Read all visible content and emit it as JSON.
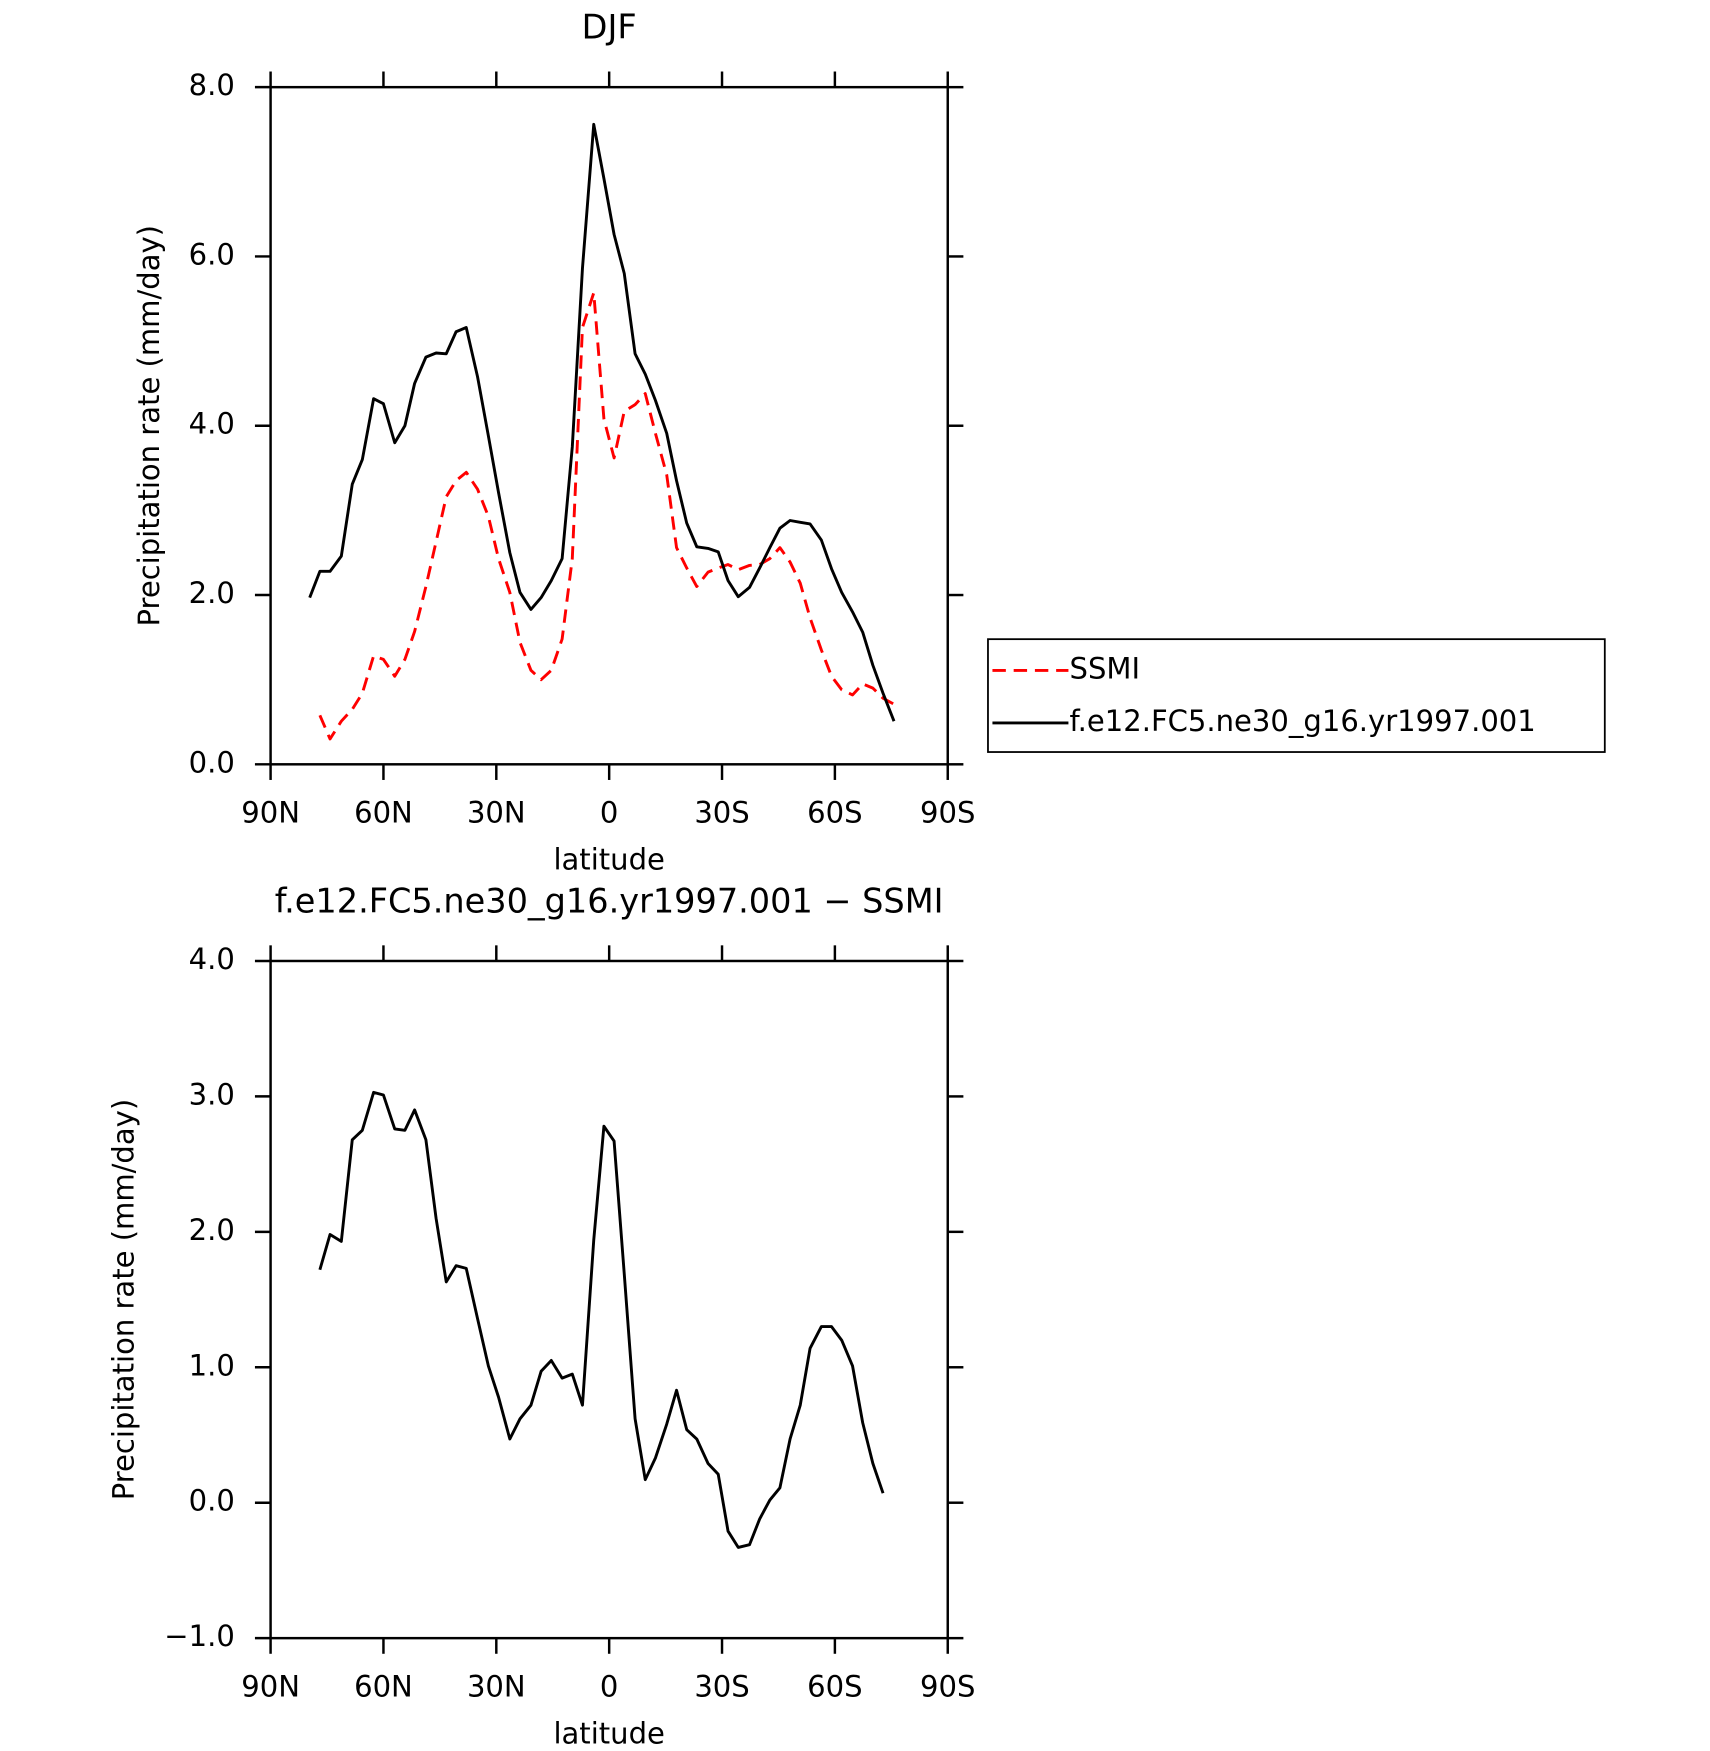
{
  "chart_data": [
    {
      "type": "line",
      "title": "DJF",
      "xlabel": "latitude",
      "ylabel": "Precipitation rate (mm/day)",
      "x": [
        79.6,
        76.9,
        74.2,
        71.2,
        68.3,
        65.6,
        62.6,
        60.0,
        57.0,
        54.3,
        51.7,
        48.7,
        46.0,
        43.3,
        40.7,
        38.0,
        35.0,
        32.1,
        29.4,
        26.4,
        23.7,
        20.8,
        18.1,
        15.4,
        12.5,
        9.8,
        7.1,
        4.1,
        1.4,
        -1.3,
        -4.0,
        -6.9,
        -9.6,
        -12.3,
        -15.3,
        -17.9,
        -20.6,
        -23.3,
        -26.3,
        -29.0,
        -31.6,
        -34.3,
        -37.3,
        -40.0,
        -42.7,
        -45.4,
        -48.1,
        -50.8,
        -53.4,
        -56.4,
        -59.1,
        -61.8,
        -64.7,
        -67.4,
        -70.1,
        -72.8,
        -75.7
      ],
      "series": [
        {
          "name": "SSMI",
          "color": "#ff0000",
          "dashed": true,
          "values": [
            null,
            0.58,
            0.3,
            0.51,
            0.65,
            0.84,
            1.28,
            1.24,
            1.04,
            1.24,
            1.57,
            2.1,
            2.63,
            3.16,
            3.35,
            3.45,
            3.25,
            2.93,
            2.43,
            2.03,
            1.44,
            1.11,
            1.0,
            1.11,
            1.48,
            2.43,
            5.16,
            5.57,
            4.08,
            3.62,
            4.17,
            4.25,
            4.38,
            3.91,
            3.42,
            2.56,
            2.32,
            2.1,
            2.27,
            2.32,
            2.36,
            2.3,
            2.35,
            2.36,
            2.43,
            2.56,
            2.39,
            2.14,
            1.73,
            1.35,
            1.04,
            0.88,
            0.82,
            0.95,
            0.9,
            0.78,
            0.71
          ]
        },
        {
          "name": "f.e12.FC5.ne30_g16.yr1997.001",
          "color": "#000000",
          "dashed": false,
          "values": [
            1.97,
            2.28,
            2.28,
            2.46,
            3.31,
            3.6,
            4.32,
            4.26,
            3.8,
            4.0,
            4.5,
            4.81,
            4.86,
            4.85,
            5.11,
            5.16,
            4.58,
            3.88,
            3.21,
            2.5,
            2.03,
            1.83,
            1.97,
            2.17,
            2.43,
            3.75,
            5.86,
            7.56,
            6.92,
            6.26,
            5.8,
            4.85,
            4.61,
            4.3,
            3.91,
            3.35,
            2.85,
            2.57,
            2.55,
            2.51,
            2.17,
            1.98,
            2.09,
            2.32,
            2.56,
            2.79,
            2.88,
            2.86,
            2.84,
            2.65,
            2.31,
            2.03,
            1.8,
            1.56,
            1.17,
            0.84,
            0.51
          ]
        }
      ],
      "xlim": [
        90,
        -90
      ],
      "xticks": [
        {
          "value": 90,
          "label": "90N"
        },
        {
          "value": 60,
          "label": "60N"
        },
        {
          "value": 30,
          "label": "30N"
        },
        0,
        {
          "value": -30,
          "label": "30S"
        },
        {
          "value": -60,
          "label": "60S"
        },
        {
          "value": -90,
          "label": "90S"
        }
      ],
      "ylim": [
        0,
        8
      ],
      "yticks": [
        {
          "value": 0,
          "label": "0.0"
        },
        {
          "value": 2,
          "label": "2.0"
        },
        {
          "value": 4,
          "label": "4.0"
        },
        {
          "value": 6,
          "label": "6.0"
        },
        {
          "value": 8,
          "label": "8.0"
        }
      ],
      "legend": "right"
    },
    {
      "type": "line",
      "title": "f.e12.FC5.ne30_g16.yr1997.001 − SSMI",
      "xlabel": "latitude",
      "ylabel": "Precipitation rate (mm/day)",
      "x": [
        79.6,
        76.9,
        74.2,
        71.2,
        68.3,
        65.6,
        62.6,
        60.0,
        57.0,
        54.3,
        51.7,
        48.7,
        46.0,
        43.3,
        40.7,
        38.0,
        35.0,
        32.1,
        29.4,
        26.4,
        23.7,
        20.8,
        18.1,
        15.4,
        12.5,
        9.8,
        7.1,
        4.1,
        1.4,
        -1.3,
        -4.0,
        -6.9,
        -9.6,
        -12.3,
        -15.3,
        -17.9,
        -20.6,
        -23.3,
        -26.3,
        -29.0,
        -31.6,
        -34.3,
        -37.3,
        -40.0,
        -42.7,
        -45.4,
        -48.1,
        -50.8,
        -53.4,
        -56.4,
        -59.1,
        -61.8,
        -64.7,
        -67.4,
        -70.1,
        -72.8,
        -75.7
      ],
      "values": [
        null,
        1.72,
        1.98,
        1.93,
        2.68,
        2.75,
        3.03,
        3.01,
        2.76,
        2.75,
        2.9,
        2.68,
        2.1,
        1.63,
        1.75,
        1.73,
        1.36,
        1.01,
        0.78,
        0.47,
        0.62,
        0.72,
        0.97,
        1.05,
        0.92,
        0.95,
        0.72,
        1.94,
        2.78,
        2.67,
        1.69,
        0.62,
        0.17,
        0.33,
        0.58,
        0.83,
        0.54,
        0.47,
        0.29,
        0.21,
        -0.21,
        -0.33,
        -0.31,
        -0.12,
        0.02,
        0.11,
        0.47,
        0.72,
        1.14,
        1.3,
        1.3,
        1.2,
        1.01,
        0.59,
        0.29,
        0.07,
        null
      ],
      "color": "#000000",
      "xlim": [
        90,
        -90
      ],
      "xticks": [
        {
          "value": 90,
          "label": "90N"
        },
        {
          "value": 60,
          "label": "60N"
        },
        {
          "value": 30,
          "label": "30N"
        },
        0,
        {
          "value": -30,
          "label": "30S"
        },
        {
          "value": -60,
          "label": "60S"
        },
        {
          "value": -90,
          "label": "90S"
        }
      ],
      "ylim": [
        -1,
        4
      ],
      "yticks": [
        {
          "value": -1,
          "label": "−1.0"
        },
        {
          "value": 0,
          "label": "0.0"
        },
        {
          "value": 1,
          "label": "1.0"
        },
        {
          "value": 2,
          "label": "2.0"
        },
        {
          "value": 3,
          "label": "3.0"
        },
        {
          "value": 4,
          "label": "4.0"
        }
      ]
    }
  ]
}
